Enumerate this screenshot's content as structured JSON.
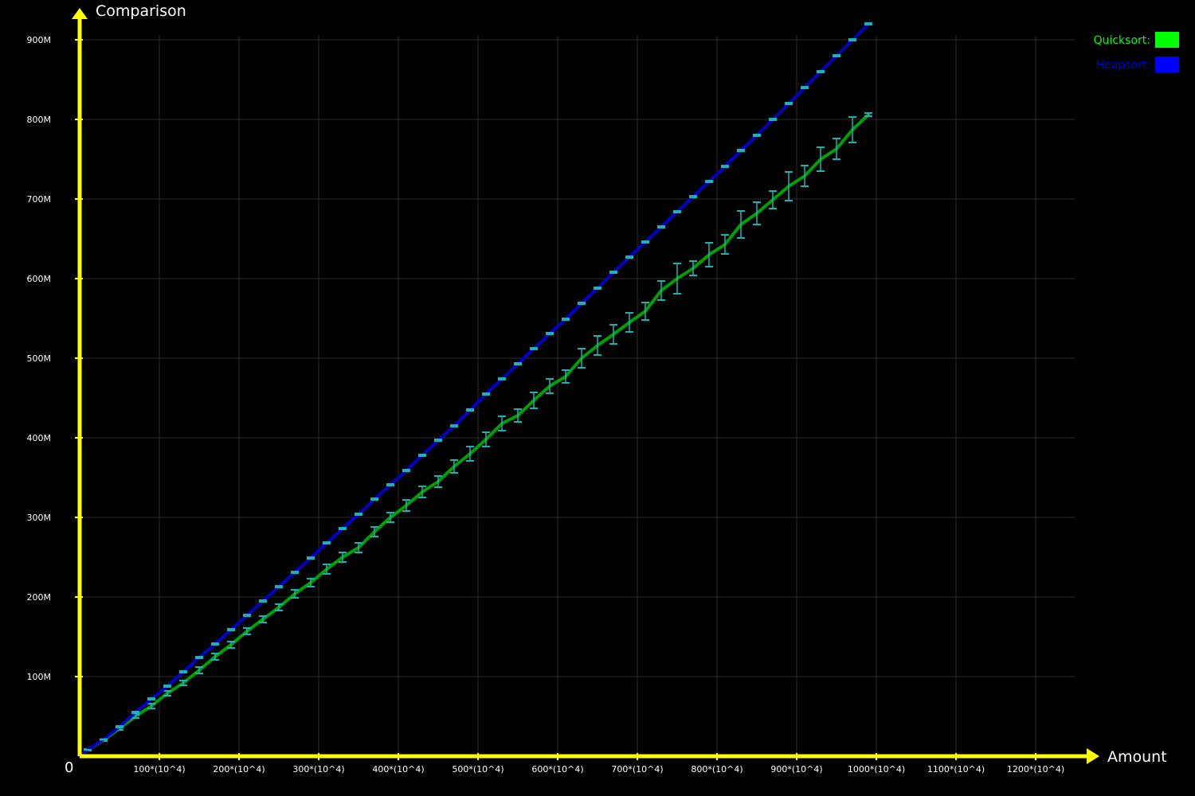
{
  "chart_data": {
    "type": "line",
    "xlabel": "Amount",
    "ylabel": "Comparison",
    "origin_label": "0",
    "xlim": [
      0,
      1250
    ],
    "ylim": [
      0,
      950
    ],
    "grid": true,
    "legend_position": "top-right",
    "x_tick_values": [
      100,
      200,
      300,
      400,
      500,
      600,
      700,
      800,
      900,
      1000,
      1100,
      1200
    ],
    "x_tick_labels": [
      "100*(10^4)",
      "200*(10^4)",
      "300*(10^4)",
      "400*(10^4)",
      "500*(10^4)",
      "600*(10^4)",
      "700*(10^4)",
      "800*(10^4)",
      "900*(10^4)",
      "1000*(10^4)",
      "1100*(10^4)",
      "1200*(10^4)"
    ],
    "y_tick_values": [
      100,
      200,
      300,
      400,
      500,
      600,
      700,
      800,
      900
    ],
    "y_tick_labels": [
      "100M",
      "200M",
      "300M",
      "400M",
      "500M",
      "600M",
      "700M",
      "800M",
      "900M"
    ],
    "colors": {
      "background": "#000000",
      "axis": "#ffff00",
      "grid": "#2a2a2a",
      "quicksort": "#00a000",
      "heapsort": "#0000c8",
      "error_bar": "#18b4b4"
    },
    "series": [
      {
        "name": "Quicksort:",
        "legend_color": "#00ff00",
        "label_color": "#00ff00",
        "x": [
          0,
          10,
          30,
          50,
          70,
          90,
          110,
          130,
          150,
          170,
          190,
          210,
          230,
          250,
          270,
          290,
          310,
          330,
          350,
          370,
          390,
          410,
          430,
          450,
          470,
          490,
          510,
          530,
          550,
          570,
          590,
          610,
          630,
          650,
          670,
          690,
          710,
          730,
          750,
          770,
          790,
          810,
          830,
          850,
          870,
          890,
          910,
          930,
          950,
          970,
          990
        ],
        "y": [
          0,
          8,
          20,
          35,
          50,
          63,
          79,
          92,
          108,
          125,
          140,
          157,
          172,
          187,
          204,
          218,
          235,
          250,
          262,
          282,
          300,
          315,
          332,
          345,
          364,
          380,
          398,
          418,
          428,
          447,
          465,
          477,
          500,
          516,
          530,
          545,
          559,
          585,
          600,
          613,
          630,
          643,
          668,
          682,
          699,
          716,
          729,
          750,
          763,
          787,
          806
        ],
        "err": [
          0,
          1,
          1,
          2,
          2,
          3,
          3,
          3,
          4,
          4,
          4,
          4,
          4,
          4,
          5,
          5,
          6,
          6,
          6,
          6,
          6,
          7,
          7,
          7,
          8,
          9,
          9,
          9,
          8,
          10,
          9,
          8,
          12,
          12,
          12,
          12,
          11,
          12,
          19,
          9,
          15,
          12,
          17,
          14,
          11,
          18,
          13,
          15,
          13,
          16,
          2
        ]
      },
      {
        "name": "Heapsort:",
        "legend_color": "#0000ff",
        "label_color": "#0000e0",
        "x": [
          0,
          10,
          30,
          50,
          70,
          90,
          110,
          130,
          150,
          170,
          190,
          210,
          230,
          250,
          270,
          290,
          310,
          330,
          350,
          370,
          390,
          410,
          430,
          450,
          470,
          490,
          510,
          530,
          550,
          570,
          590,
          610,
          630,
          650,
          670,
          690,
          710,
          730,
          750,
          770,
          790,
          810,
          830,
          850,
          870,
          890,
          910,
          930,
          950,
          970,
          990
        ],
        "y": [
          0,
          8,
          21,
          37,
          55,
          72,
          88,
          106,
          124,
          141,
          159,
          177,
          195,
          213,
          231,
          249,
          268,
          286,
          304,
          323,
          341,
          359,
          378,
          397,
          415,
          435,
          455,
          474,
          493,
          512,
          531,
          549,
          569,
          588,
          608,
          627,
          646,
          665,
          684,
          703,
          722,
          741,
          761,
          780,
          800,
          820,
          840,
          860,
          880,
          900,
          920
        ],
        "err": [
          0,
          0,
          0.5,
          1,
          1,
          1,
          1,
          1,
          1,
          1,
          1,
          1,
          1,
          1,
          1,
          1,
          1,
          1,
          1,
          1,
          1,
          1,
          1,
          1,
          1,
          1,
          1,
          1,
          1,
          1,
          1,
          1,
          1,
          1,
          1,
          1,
          1,
          1,
          1,
          1,
          1,
          1,
          1,
          1,
          1,
          1,
          1,
          1,
          1,
          1,
          1
        ]
      }
    ]
  }
}
